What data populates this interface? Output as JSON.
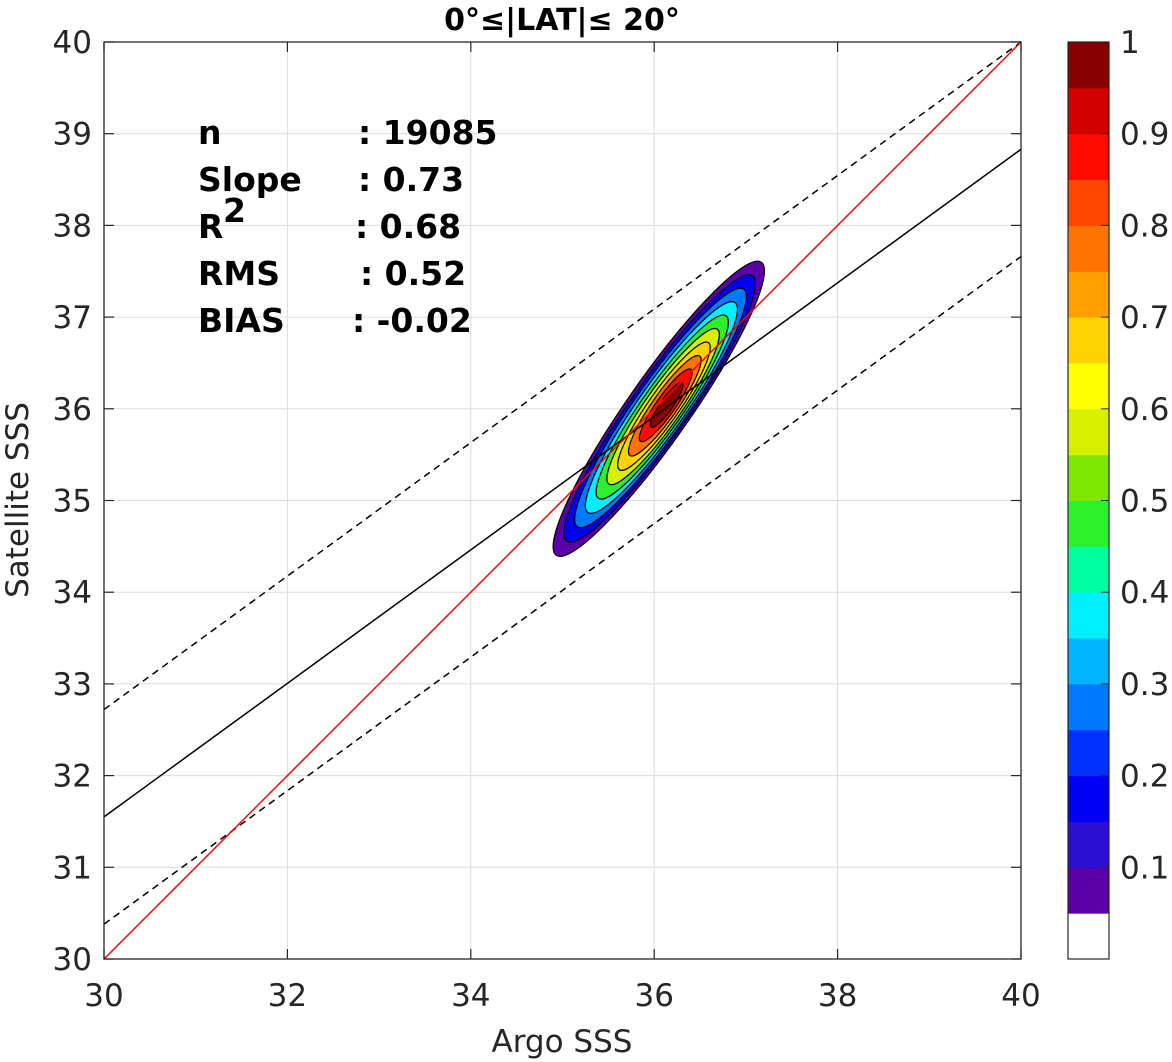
{
  "chart_data": {
    "type": "contourf",
    "title": "0°≤|LAT|≤ 20°",
    "xlabel": "Argo SSS",
    "ylabel": "Satellite SSS",
    "xlim": [
      30,
      40
    ],
    "ylim": [
      30,
      40
    ],
    "xticks": [
      "30",
      "32",
      "34",
      "36",
      "38",
      "40"
    ],
    "yticks": [
      "30",
      "31",
      "32",
      "33",
      "34",
      "35",
      "36",
      "37",
      "38",
      "39",
      "40"
    ],
    "grid": true,
    "stats": [
      {
        "label": "n",
        "value": ": 19085"
      },
      {
        "label": "Slope",
        "value": ": 0.73"
      },
      {
        "label": "R",
        "sup": "2",
        "value": ": 0.68"
      },
      {
        "label": "RMS",
        "value": ": 0.52"
      },
      {
        "label": "BIAS",
        "value": ": -0.02"
      }
    ],
    "one_to_one_line": {
      "color": "#ff0000",
      "points": [
        [
          30,
          30
        ],
        [
          40,
          40
        ]
      ]
    },
    "fit_line": {
      "color": "#000000",
      "points": [
        [
          30,
          31.55
        ],
        [
          40,
          38.83
        ]
      ]
    },
    "upper_bound_line": {
      "style": "dashed",
      "points": [
        [
          30,
          32.72
        ],
        [
          40,
          40.0
        ]
      ]
    },
    "lower_bound_line": {
      "style": "dashed",
      "points": [
        [
          30,
          30.38
        ],
        [
          40,
          37.66
        ]
      ]
    },
    "density": {
      "center": [
        36.05,
        36.0
      ],
      "angle_deg": 55,
      "half_length": 1.95,
      "half_width": 0.34,
      "normalized_levels": [
        0.05,
        0.1,
        0.2,
        0.3,
        0.4,
        0.5,
        0.6,
        0.7,
        0.8,
        0.9
      ]
    },
    "colorbar": {
      "ticks": [
        "0.1",
        "0.2",
        "0.3",
        "0.4",
        "0.5",
        "0.6",
        "0.7",
        "0.8",
        "0.9",
        "1"
      ],
      "colors": [
        "#ffffff",
        "#5b00a8",
        "#2b0fd0",
        "#0000f5",
        "#0032ff",
        "#0078ff",
        "#00b4ff",
        "#00f0ff",
        "#00ffa0",
        "#2bf02b",
        "#7ee600",
        "#d7f000",
        "#ffff00",
        "#ffd200",
        "#ffa000",
        "#ff7300",
        "#ff4600",
        "#ff0a00",
        "#d20000",
        "#880000"
      ]
    }
  }
}
